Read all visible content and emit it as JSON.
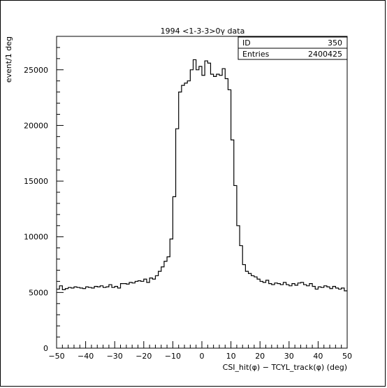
{
  "chart_data": {
    "type": "histogram",
    "title": "1994 <1-3-3>0γ data",
    "xlabel": "CSI_hit(φ) − TCYL_track(φ) (deg)",
    "ylabel": "event/1 deg",
    "xlim": [
      -50,
      50
    ],
    "ylim": [
      0,
      28000
    ],
    "x_ticks": [
      "−50",
      "−40",
      "−30",
      "−20",
      "−10",
      "0",
      "10",
      "20",
      "30",
      "40",
      "50"
    ],
    "y_ticks": [
      "0",
      "5000",
      "10000",
      "15000",
      "20000",
      "25000"
    ],
    "bin_width": 1,
    "x_start": -50,
    "values": [
      5300,
      5600,
      5250,
      5350,
      5450,
      5400,
      5500,
      5450,
      5400,
      5350,
      5500,
      5450,
      5400,
      5550,
      5500,
      5600,
      5450,
      5500,
      5700,
      5450,
      5550,
      5400,
      5800,
      5800,
      5750,
      5900,
      5850,
      6000,
      6050,
      6000,
      6200,
      5900,
      6300,
      6200,
      6500,
      6900,
      7300,
      7800,
      8200,
      9800,
      13600,
      19700,
      23000,
      23600,
      23800,
      24000,
      25000,
      25900,
      25000,
      25300,
      24500,
      25800,
      25600,
      24600,
      24400,
      24600,
      24500,
      25100,
      24200,
      23200,
      18700,
      14600,
      11000,
      9200,
      7500,
      6900,
      6700,
      6500,
      6400,
      6200,
      6000,
      5900,
      6100,
      5800,
      5700,
      5850,
      5800,
      5700,
      5900,
      5700,
      5600,
      5800,
      5650,
      5850,
      5900,
      5700,
      5600,
      5800,
      5550,
      5300,
      5500,
      5450,
      5600,
      5500,
      5350,
      5550,
      5400,
      5300,
      5400,
      5150
    ],
    "stats_box": {
      "rows": [
        {
          "label": "ID",
          "value": "350"
        },
        {
          "label": "Entries",
          "value": "2400425"
        }
      ]
    }
  }
}
